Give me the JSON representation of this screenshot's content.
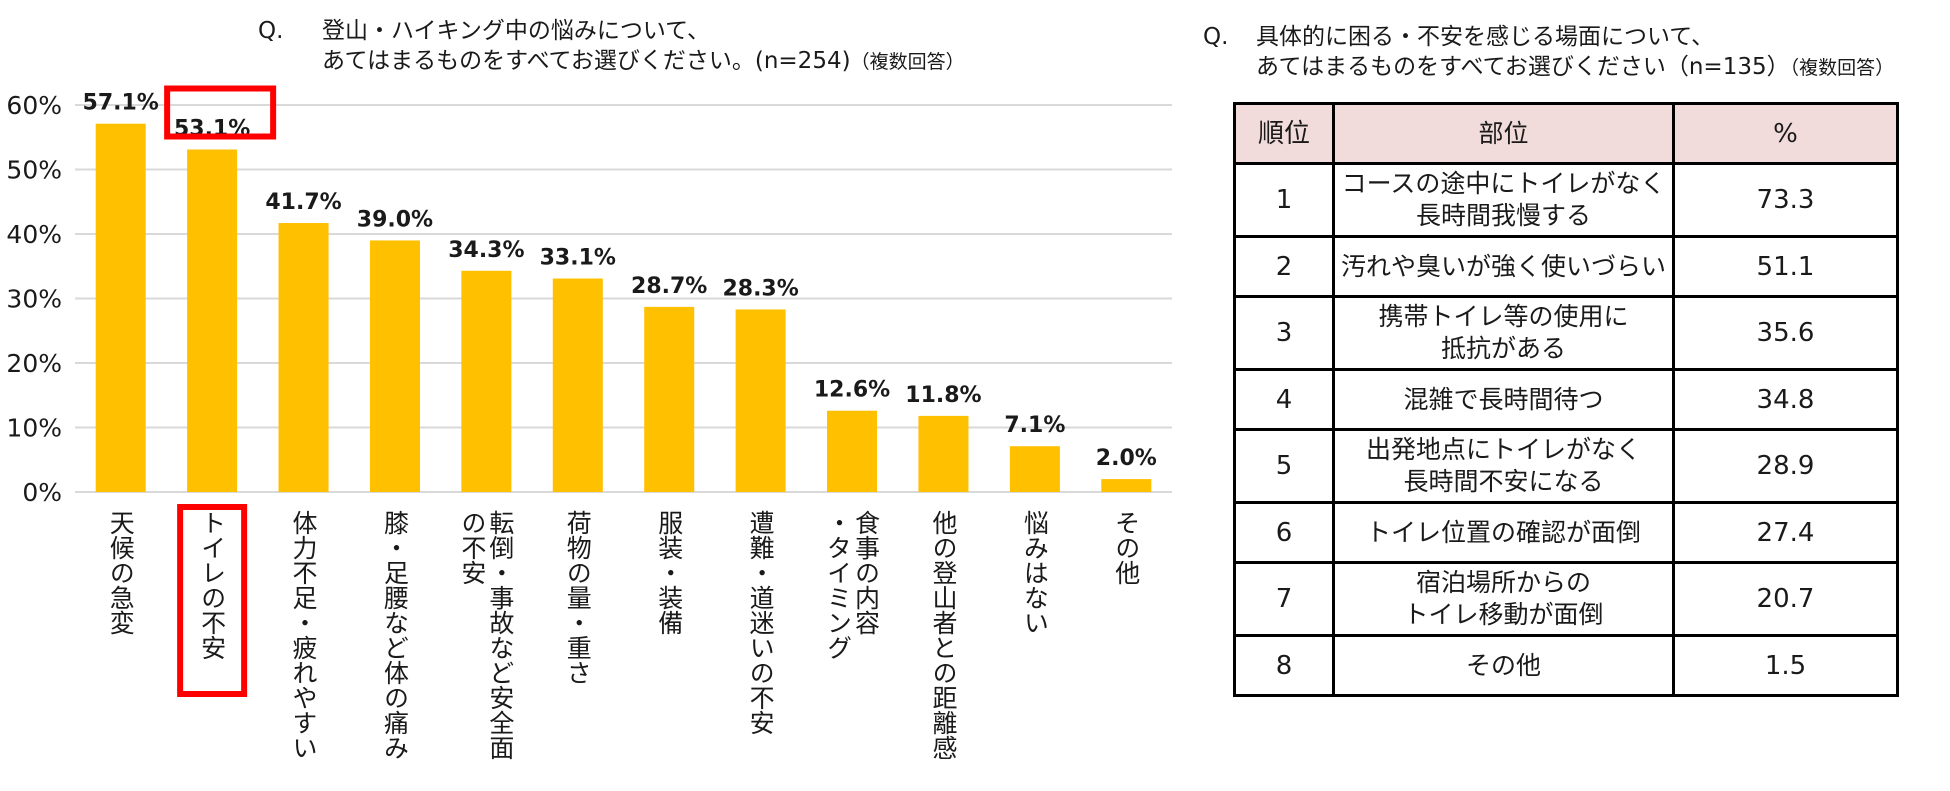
{
  "left_question": {
    "q": "Q.",
    "line1": "登山・ハイキング中の悩みについて、",
    "line2": "あてはまるものをすべてお選びください。(n=254)",
    "note": "（複数回答）"
  },
  "right_question": {
    "q": "Q.",
    "line1": "具体的に困る・不安を感じる場面について、",
    "line2": "あてはまるものをすべてお選びください（n=135）",
    "note": "（複数回答）"
  },
  "chart_data": {
    "type": "bar",
    "categories": [
      "天候の急変",
      "トイレの不安",
      "体力不足・疲れやすい",
      "膝・足腰など体の痛み",
      "転倒・事故など安全面の不安",
      "荷物の量・重さ",
      "服装・装備",
      "遭難・道迷いの不安",
      "食事の内容・タイミング",
      "他の登山者との距離感",
      "悩みはない",
      "その他"
    ],
    "category_lines": [
      [
        "天候の急変"
      ],
      [
        "トイレの不安"
      ],
      [
        "体力不足・疲れやすい"
      ],
      [
        "膝・足腰など体の痛み"
      ],
      [
        "転倒・事故など安全面",
        "の不安"
      ],
      [
        "荷物の量・重さ"
      ],
      [
        "服装・装備"
      ],
      [
        "遭難・道迷いの不安"
      ],
      [
        "食事の内容",
        "・タイミング"
      ],
      [
        "他の登山者との距離感"
      ],
      [
        "悩みはない"
      ],
      [
        "その他"
      ]
    ],
    "values": [
      57.1,
      53.1,
      41.7,
      39.0,
      34.3,
      33.1,
      28.7,
      28.3,
      12.6,
      11.8,
      7.1,
      2.0
    ],
    "value_labels": [
      "57.1%",
      "53.1%",
      "41.7%",
      "39.0%",
      "34.3%",
      "33.1%",
      "28.7%",
      "28.3%",
      "12.6%",
      "11.8%",
      "7.1%",
      "2.0%"
    ],
    "ylim": [
      0,
      60
    ],
    "yticks": [
      0,
      10,
      20,
      30,
      40,
      50,
      60
    ],
    "ytick_labels": [
      "0%",
      "10%",
      "20%",
      "30%",
      "40%",
      "50%",
      "60%"
    ],
    "highlight_index": 1,
    "grid": true,
    "bar_color": "#ffc000",
    "grid_color": "#d9d9d9",
    "highlight_color": "#ff0000",
    "xlabel": "",
    "ylabel": ""
  },
  "table": {
    "headers": [
      "順位",
      "部位",
      "%"
    ],
    "rows": [
      {
        "rank": "1",
        "lines": [
          "コースの途中にトイレがなく",
          "長時間我慢する"
        ],
        "pct": "73.3"
      },
      {
        "rank": "2",
        "lines": [
          "汚れや臭いが強く使いづらい"
        ],
        "pct": "51.1"
      },
      {
        "rank": "3",
        "lines": [
          "携帯トイレ等の使用に",
          "抵抗がある"
        ],
        "pct": "35.6"
      },
      {
        "rank": "4",
        "lines": [
          "混雑で長時間待つ"
        ],
        "pct": "34.8"
      },
      {
        "rank": "5",
        "lines": [
          "出発地点にトイレがなく",
          "長時間不安になる"
        ],
        "pct": "28.9"
      },
      {
        "rank": "6",
        "lines": [
          "トイレ位置の確認が面倒"
        ],
        "pct": "27.4"
      },
      {
        "rank": "7",
        "lines": [
          "宿泊場所からの",
          "トイレ移動が面倒"
        ],
        "pct": "20.7"
      },
      {
        "rank": "8",
        "lines": [
          "その他"
        ],
        "pct": "1.5"
      }
    ]
  }
}
